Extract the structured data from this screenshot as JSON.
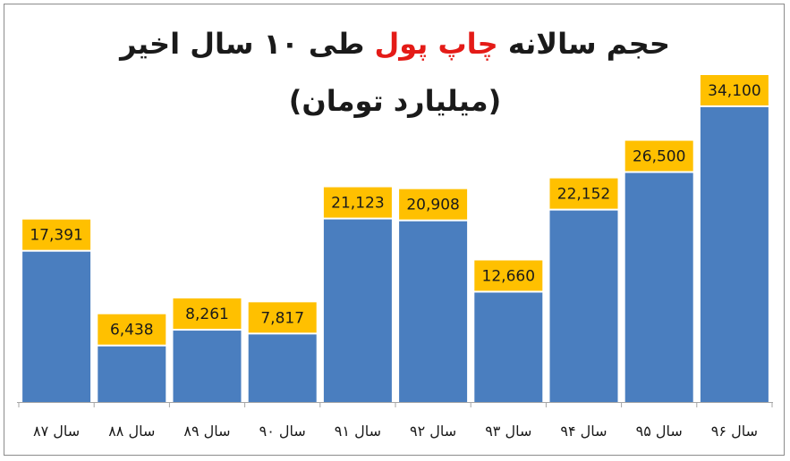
{
  "title": {
    "part1": "حجم سالانه",
    "highlight": "چاپ پول",
    "part2": "طی ۱۰ سال اخیر",
    "subtitle": "(میلیارد تومان)"
  },
  "colors": {
    "bar": "#4a7ebf",
    "label_bg": "#ffc000",
    "highlight": "#e41b17",
    "axis": "#a6a6a6"
  },
  "chart_data": {
    "type": "bar",
    "title": "حجم سالانه چاپ پول طی ۱۰ سال اخیر",
    "subtitle": "(میلیارد تومان)",
    "categories": [
      "سال ۸۷",
      "سال ۸۸",
      "سال ۸۹",
      "سال ۹۰",
      "سال ۹۱",
      "سال ۹۲",
      "سال ۹۳",
      "سال ۹۴",
      "سال ۹۵",
      "سال ۹۶"
    ],
    "values": [
      17391,
      6438,
      8261,
      7817,
      21123,
      20908,
      12660,
      22152,
      26500,
      34100
    ],
    "value_labels": [
      "17,391",
      "6,438",
      "8,261",
      "7,817",
      "21,123",
      "20,908",
      "12,660",
      "22,152",
      "26,500",
      "34,100"
    ],
    "ylim": [
      0,
      34100
    ],
    "grid": false,
    "legend": "none"
  }
}
